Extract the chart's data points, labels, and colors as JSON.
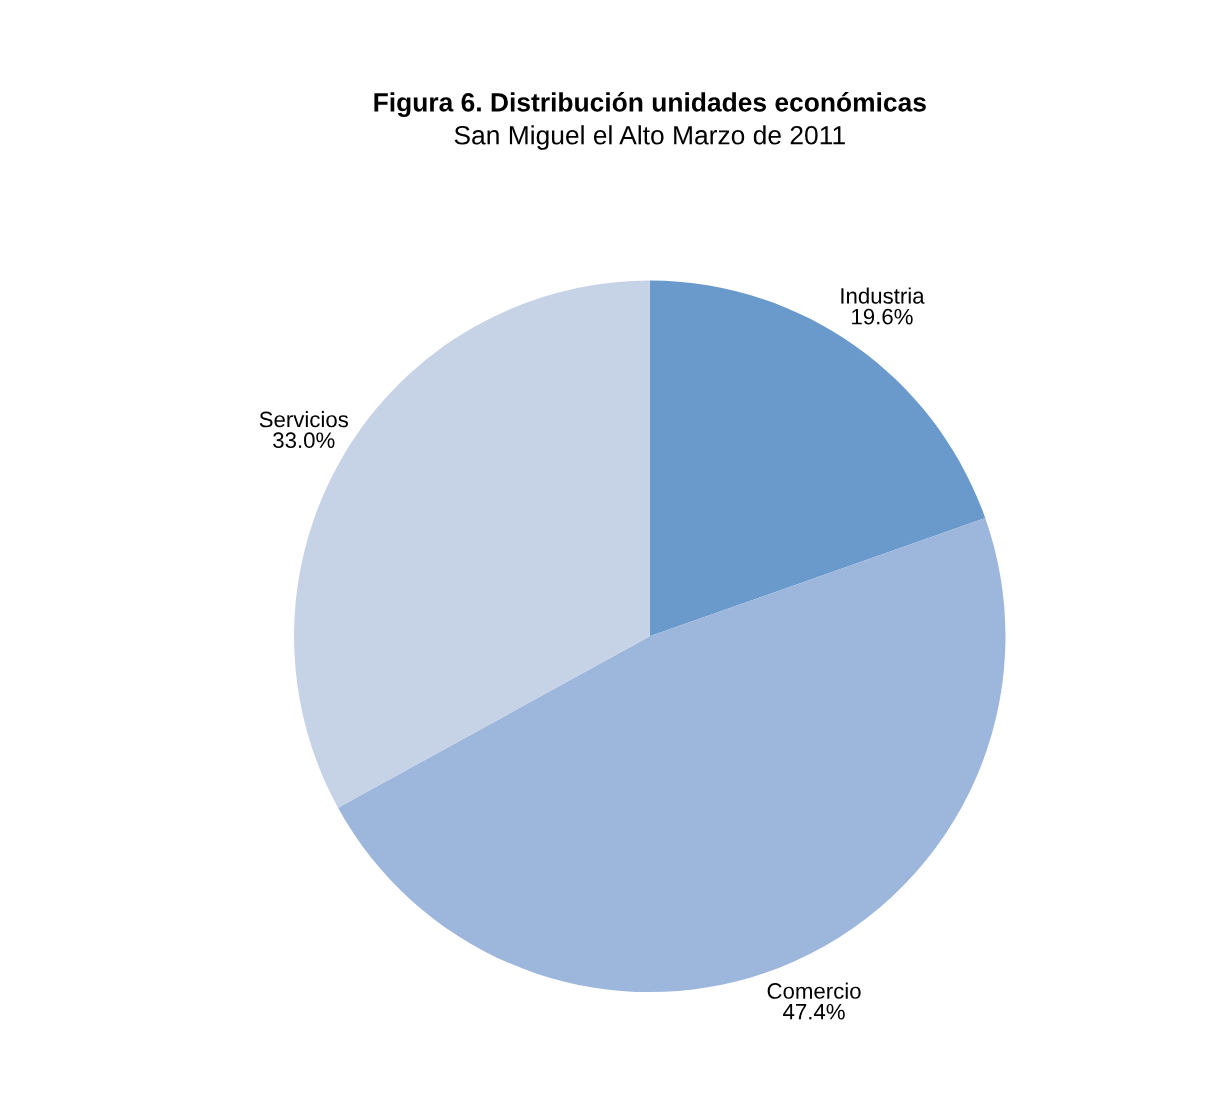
{
  "chart_data": {
    "type": "pie",
    "title": "Figura 6. Distribución unidades económicas",
    "subtitle": "San Miguel el Alto Marzo de 2011",
    "categories": [
      "Industria",
      "Comercio",
      "Servicios"
    ],
    "values": [
      19.6,
      47.4,
      33.0
    ],
    "value_labels": [
      "19.6%",
      "47.4%",
      "33.0%"
    ],
    "colors": [
      "#6a9acb",
      "#9db6dc",
      "#c6d2e6"
    ],
    "legend": false
  }
}
